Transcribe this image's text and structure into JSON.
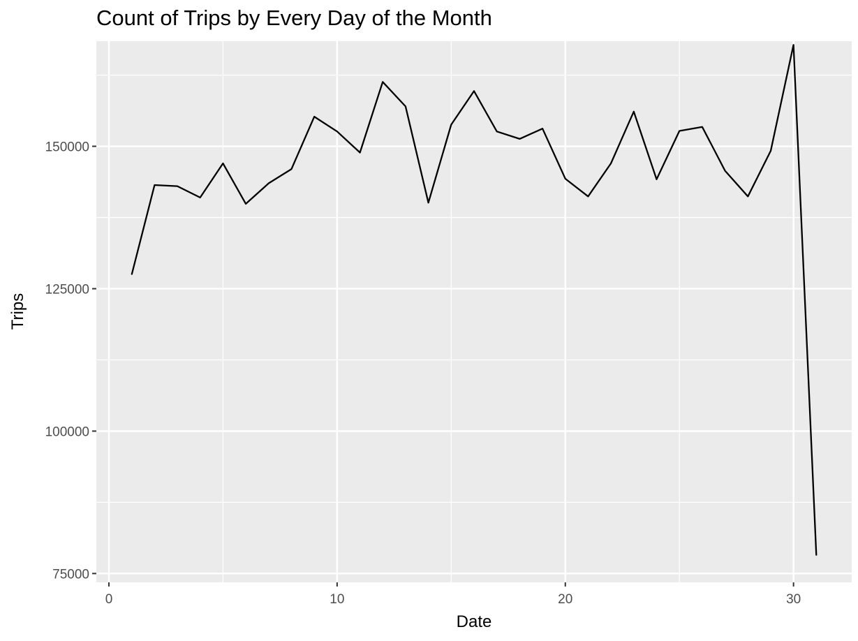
{
  "chart_data": {
    "type": "line",
    "title": "Count of Trips by Every Day of the Month",
    "xlabel": "Date",
    "ylabel": "Trips",
    "xlim": [
      -0.55,
      32.55
    ],
    "ylim": [
      73450,
      168450
    ],
    "x_ticks": [
      0,
      10,
      20,
      30
    ],
    "x_minor_ticks": [
      5,
      15,
      25
    ],
    "y_ticks": [
      75000,
      100000,
      125000,
      150000
    ],
    "y_minor_ticks": [
      87500,
      112500,
      137500,
      162500
    ],
    "grid": true,
    "legend": "none",
    "colors": {
      "panel": "#ebebeb",
      "grid": "#ffffff",
      "line": "#000000"
    },
    "series": [
      {
        "x": [
          1,
          2,
          3,
          4,
          5,
          6,
          7,
          8,
          9,
          10,
          11,
          12,
          13,
          14,
          15,
          16,
          17,
          18,
          19,
          20,
          21,
          22,
          23,
          24,
          25,
          26,
          27,
          28,
          29,
          30,
          31
        ],
        "values": [
          127500,
          143200,
          143000,
          141000,
          147000,
          139900,
          143500,
          146000,
          155200,
          152600,
          148900,
          161300,
          157000,
          140100,
          153800,
          159700,
          152600,
          151300,
          153100,
          144300,
          141200,
          147000,
          156100,
          144200,
          152700,
          153400,
          145700,
          141200,
          149200,
          167800,
          78200
        ]
      }
    ]
  }
}
